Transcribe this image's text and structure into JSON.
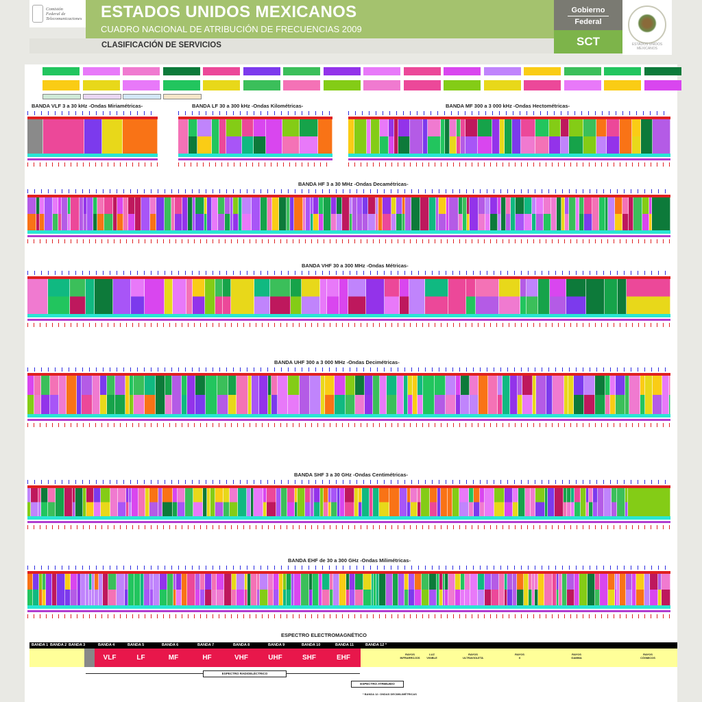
{
  "header": {
    "logo_text": [
      "Comisión",
      "Federal de",
      "Telecomunicaciones"
    ],
    "title": "ESTADOS UNIDOS MEXICANOS",
    "subtitle": "CUADRO NACIONAL DE ATRIBUCIÓN DE FRECUENCIAS 2009",
    "section": "CLASIFICACIÓN DE SERVICIOS",
    "gobierno_line1": "Gobierno",
    "gobierno_line2": "Federal",
    "sct": "SCT",
    "seal_text": "ESTADOS UNIDOS MEXICANOS"
  },
  "bands": {
    "vlf": "BANDA VLF 3 a 30 kHz -Ondas Miriamétricas-",
    "lf": "BANDA LF 30 a 300 kHz -Ondas Kilométricas-",
    "mf": "BANDA MF 300 a 3 000 kHz -Ondas Hectométricas-",
    "hf": "BANDA HF 3 a 30 MHz -Ondas Decamétricas-",
    "vhf": "BANDA VHF 30 a 300 MHz -Ondas Métricas-",
    "uhf": "BANDA UHF 300 a 3 000 MHz -Ondas Decimétricas-",
    "shf": "BANDA SHF 3 a 30 GHz -Ondas Centimétricas-",
    "ehf": "BANDA EHF de 30 a 300 GHz -Ondas Milimétricas-"
  },
  "spectrum": {
    "title": "ESPECTRO ELECTROMAGNÉTICO",
    "band_labels": [
      "BANDA 1",
      "BANDA 2",
      "BANDA 3",
      "BANDA 4",
      "BANDA 5",
      "BANDA 6",
      "BANDA 7",
      "BANDA 8",
      "BANDA 9",
      "BANDA 10",
      "BANDA 11",
      "BANDA 12 *"
    ],
    "segments": [
      "VLF",
      "LF",
      "MF",
      "HF",
      "VHF",
      "UHF",
      "SHF",
      "EHF"
    ],
    "rays": [
      [
        "RAYOS",
        "INFRARROJOS"
      ],
      [
        "LUZ",
        "VISIBLE"
      ],
      [
        "RAYOS",
        "ULTRAVIOLETA"
      ],
      [
        "RAYOS",
        "X"
      ],
      [
        "RAYOS",
        "GAMMA"
      ],
      [
        "RAYOS",
        "CÓSMICOS"
      ]
    ],
    "radio_label": "ESPECTRO RADIOELÉCTRICO",
    "atr_label": "ESPECTRO ATRIBUIDO",
    "band12_note": "* BANDA 12: ONDAS DECIMILIMÉTRICAS"
  },
  "colors": {
    "title_band": "#a4c26e",
    "gray_band": "#7a7a72",
    "sct_band": "#7db44a",
    "segment_red": "#e8174b",
    "rail_cyan": "#29e6d3",
    "rail_purple": "#b13bd0"
  }
}
